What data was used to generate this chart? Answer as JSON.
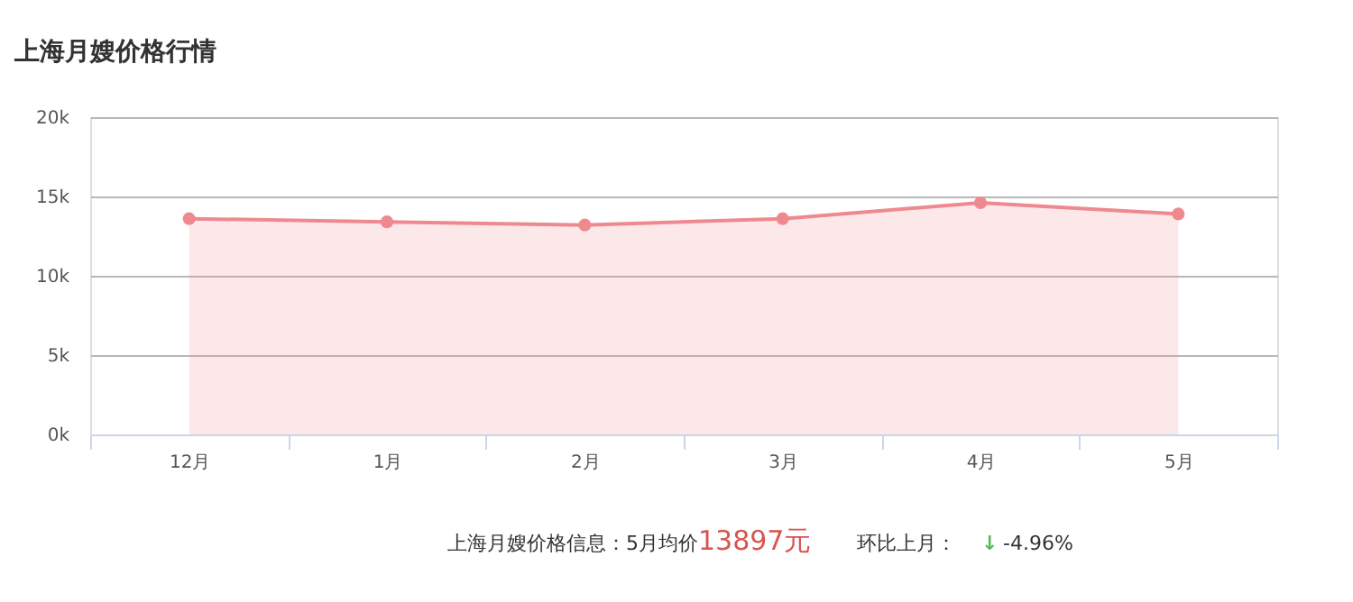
{
  "chart_data": {
    "type": "area",
    "title": "上海月嫂价格行情",
    "categories": [
      "12月",
      "1月",
      "2月",
      "3月",
      "4月",
      "5月"
    ],
    "series": [
      {
        "color": "#ee8a8f",
        "values": [
          13600,
          13400,
          13200,
          13600,
          14600,
          13897
        ]
      }
    ],
    "ylim": [
      0,
      20000
    ],
    "yticks": [
      {
        "value": 0,
        "label": "0k"
      },
      {
        "value": 5000,
        "label": "5k"
      },
      {
        "value": 10000,
        "label": "10k"
      },
      {
        "value": 15000,
        "label": "15k"
      },
      {
        "value": 20000,
        "label": "20k"
      }
    ],
    "grid": "y",
    "marker": "circle",
    "line_style": "solid",
    "annotations": [
      "上海月嫂价格信息：5月均价",
      "13897元",
      "环比上月：",
      "↓",
      "-4.96%"
    ]
  }
}
